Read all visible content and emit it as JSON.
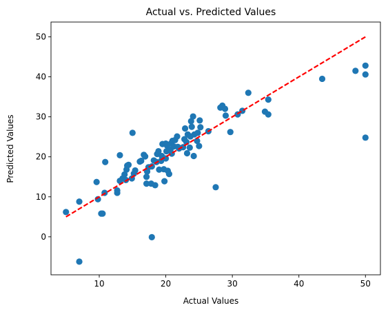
{
  "chart_data": {
    "type": "scatter",
    "title": "Actual vs. Predicted Values",
    "xlabel": "Actual Values",
    "ylabel": "Predicted Values",
    "xlim": [
      2.75,
      52.25
    ],
    "ylim": [
      -9.5,
      53.7
    ],
    "xticks": [
      10,
      20,
      30,
      40,
      50
    ],
    "yticks": [
      0,
      10,
      20,
      30,
      40,
      50
    ],
    "grid": false,
    "point_color": "#1f77b4",
    "reference_line": {
      "x": [
        5,
        50
      ],
      "y": [
        5,
        50
      ],
      "color": "#ff0000",
      "style": "dashed"
    },
    "points": [
      [
        5.0,
        6.2
      ],
      [
        7.0,
        8.8
      ],
      [
        7.0,
        -6.2
      ],
      [
        9.6,
        13.7
      ],
      [
        9.8,
        9.4
      ],
      [
        10.3,
        5.8
      ],
      [
        10.5,
        5.8
      ],
      [
        10.8,
        11.0
      ],
      [
        10.9,
        18.7
      ],
      [
        12.7,
        11.6
      ],
      [
        12.7,
        11.0
      ],
      [
        13.1,
        14.0
      ],
      [
        13.1,
        20.4
      ],
      [
        13.5,
        14.6
      ],
      [
        13.8,
        15.6
      ],
      [
        14.0,
        14.2
      ],
      [
        14.1,
        16.8
      ],
      [
        14.2,
        17.8
      ],
      [
        14.4,
        18.0
      ],
      [
        14.9,
        14.6
      ],
      [
        15.0,
        26.0
      ],
      [
        15.2,
        15.8
      ],
      [
        15.4,
        16.6
      ],
      [
        16.1,
        18.8
      ],
      [
        16.3,
        19.0
      ],
      [
        16.7,
        20.5
      ],
      [
        16.9,
        20.1
      ],
      [
        17.1,
        15.0
      ],
      [
        17.1,
        13.3
      ],
      [
        17.2,
        16.3
      ],
      [
        17.4,
        17.4
      ],
      [
        17.9,
        17.6
      ],
      [
        17.9,
        -0.1
      ],
      [
        17.8,
        13.3
      ],
      [
        18.2,
        19.1
      ],
      [
        18.4,
        12.9
      ],
      [
        18.6,
        18.7
      ],
      [
        18.7,
        20.7
      ],
      [
        18.9,
        21.4
      ],
      [
        19.0,
        16.8
      ],
      [
        19.3,
        19.0
      ],
      [
        19.4,
        20.2
      ],
      [
        19.5,
        23.2
      ],
      [
        19.7,
        16.9
      ],
      [
        19.8,
        13.9
      ],
      [
        20.0,
        19.6
      ],
      [
        20.0,
        23.3
      ],
      [
        20.1,
        21.4
      ],
      [
        20.2,
        22.8
      ],
      [
        20.3,
        16.5
      ],
      [
        20.5,
        15.7
      ],
      [
        20.7,
        21.8
      ],
      [
        20.8,
        23.4
      ],
      [
        20.9,
        20.8
      ],
      [
        21.0,
        24.0
      ],
      [
        21.2,
        22.6
      ],
      [
        21.4,
        24.2
      ],
      [
        21.7,
        25.1
      ],
      [
        21.8,
        22.5
      ],
      [
        22.0,
        22.1
      ],
      [
        22.6,
        22.4
      ],
      [
        22.8,
        24.4
      ],
      [
        22.9,
        27.1
      ],
      [
        23.1,
        23.7
      ],
      [
        23.2,
        20.9
      ],
      [
        23.3,
        25.6
      ],
      [
        23.6,
        22.3
      ],
      [
        23.7,
        25.1
      ],
      [
        23.8,
        28.9
      ],
      [
        23.9,
        27.5
      ],
      [
        24.1,
        30.1
      ],
      [
        24.2,
        20.2
      ],
      [
        24.3,
        25.6
      ],
      [
        24.7,
        24.0
      ],
      [
        24.8,
        26.0
      ],
      [
        25.0,
        22.7
      ],
      [
        25.1,
        29.1
      ],
      [
        25.2,
        27.4
      ],
      [
        26.4,
        26.4
      ],
      [
        27.5,
        12.4
      ],
      [
        28.2,
        32.3
      ],
      [
        28.5,
        32.8
      ],
      [
        28.9,
        32.0
      ],
      [
        29.0,
        30.3
      ],
      [
        29.7,
        26.2
      ],
      [
        30.8,
        30.6
      ],
      [
        31.5,
        31.5
      ],
      [
        32.4,
        36.0
      ],
      [
        34.9,
        31.3
      ],
      [
        35.4,
        34.3
      ],
      [
        35.4,
        30.6
      ],
      [
        43.5,
        39.5
      ],
      [
        48.5,
        41.5
      ],
      [
        50.0,
        42.8
      ],
      [
        50.0,
        40.6
      ],
      [
        50.0,
        24.8
      ]
    ]
  }
}
